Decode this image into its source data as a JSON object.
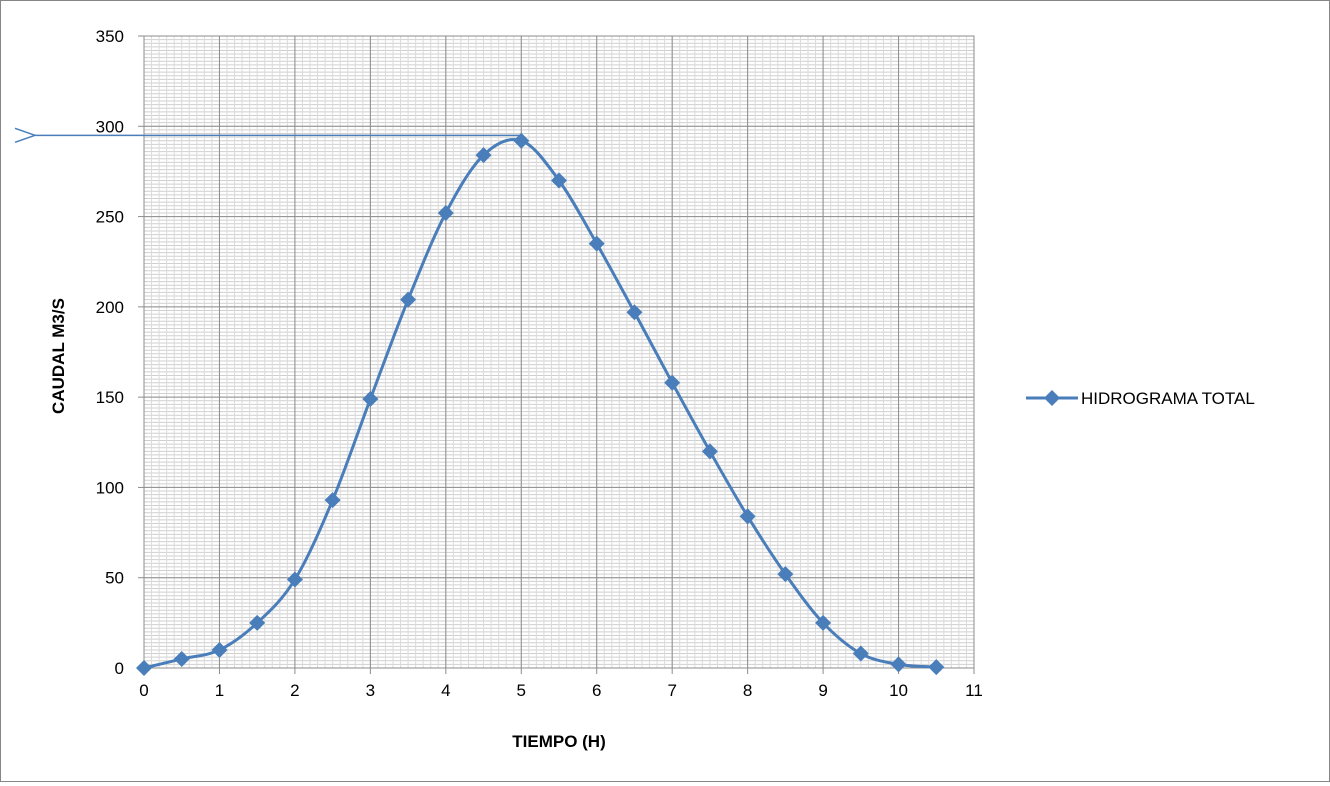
{
  "chart_data": {
    "type": "line",
    "title": "",
    "xlabel": "TIEMPO (H)",
    "ylabel": "CAUDAL M3/S",
    "xlim": [
      0,
      11
    ],
    "ylim": [
      0,
      350
    ],
    "x_ticks": [
      "0",
      "1",
      "2",
      "3",
      "4",
      "5",
      "6",
      "7",
      "8",
      "9",
      "10",
      "11"
    ],
    "y_ticks": [
      "0",
      "50",
      "100",
      "150",
      "200",
      "250",
      "300",
      "350"
    ],
    "grid": true,
    "legend_position": "right",
    "marker": "diamond",
    "series_color": "#4a7ebb",
    "grid_color": "#8c8c8c",
    "series": [
      {
        "name": "HIDROGRAMA TOTAL",
        "x": [
          0,
          0.5,
          1,
          1.5,
          2,
          2.5,
          3,
          3.5,
          4,
          4.5,
          5,
          5.5,
          6,
          6.5,
          7,
          7.5,
          8,
          8.5,
          9,
          9.5,
          10,
          10.5
        ],
        "y": [
          0,
          5,
          10,
          25,
          49,
          93,
          149,
          204,
          252,
          284,
          292,
          270,
          235,
          197,
          158,
          120,
          84,
          52,
          25,
          8,
          2,
          0.5
        ]
      }
    ],
    "annotations": [
      {
        "type": "arrow",
        "from": [
          5,
          295
        ],
        "to_edge": "left"
      }
    ]
  }
}
